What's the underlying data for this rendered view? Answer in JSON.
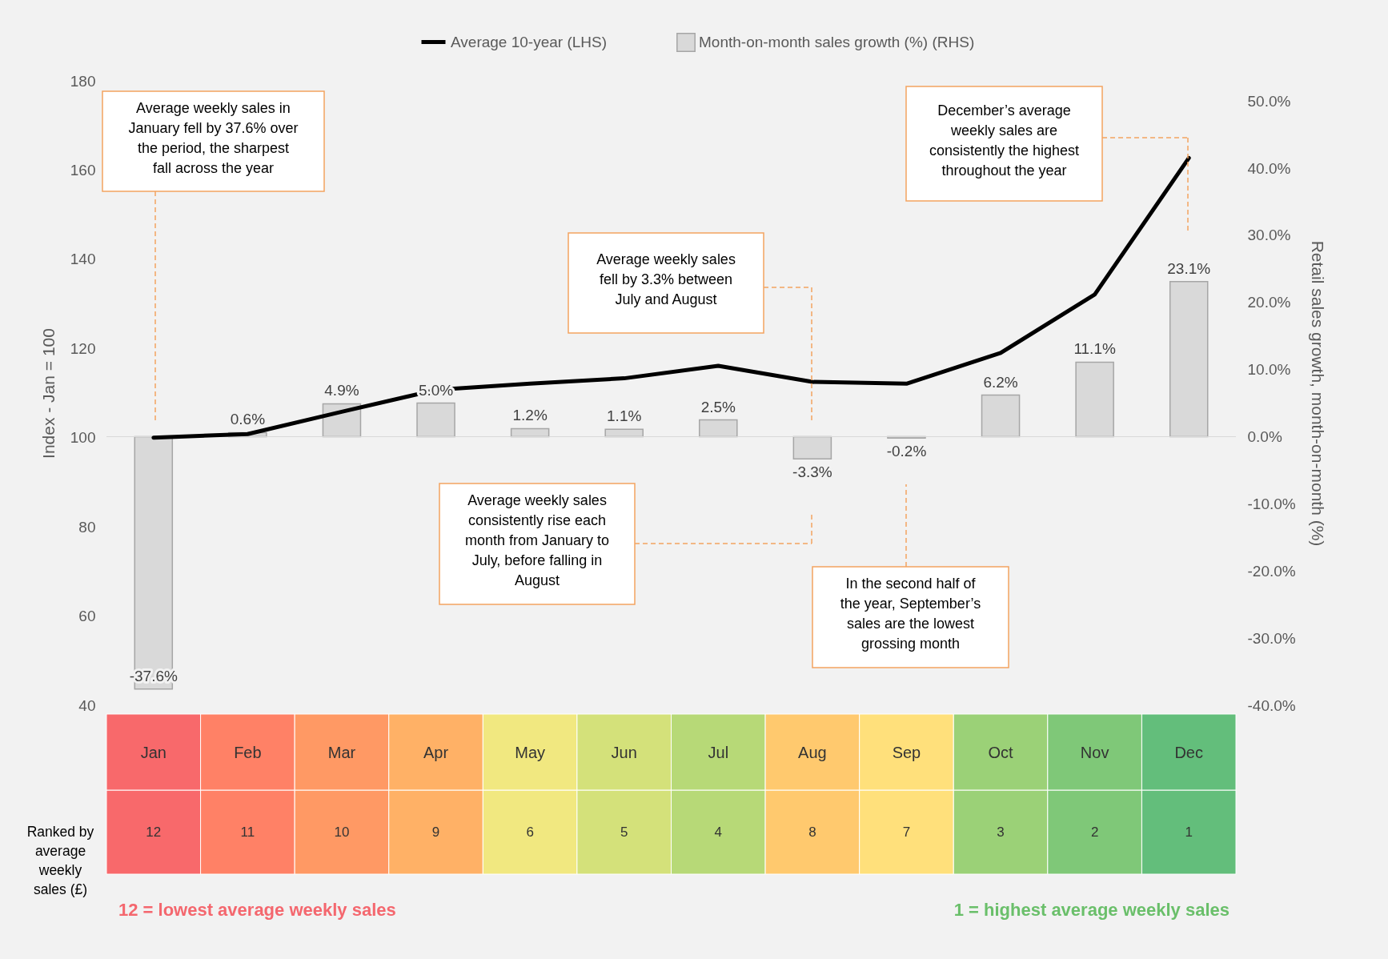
{
  "chart_data": [
    {
      "type": "bar",
      "categories": [
        null,
        null,
        null,
        null,
        null,
        null,
        null,
        null,
        null,
        null,
        null,
        null
      ],
      "series": [
        {
          "name": "Average 10-year (LHS)",
          "type": "line",
          "color": "#000000",
          "values": [
            100,
            100.8,
            105.8,
            110.7,
            112.1,
            113.3,
            116.1,
            112.5,
            112.1,
            119,
            132.1,
            162.7
          ]
        },
        {
          "name": "Month-on-month sales growth (%) (RHS)",
          "type": "bar",
          "axis": "y2",
          "color": "#d9d9d9",
          "values": [
            -37.6,
            0.6,
            4.9,
            5.0,
            1.2,
            1.1,
            2.5,
            -3.3,
            -0.2,
            6.2,
            11.1,
            23.1
          ],
          "value_labels": [
            "-37.6%",
            "0.6%",
            "4.9%",
            "5.0%",
            "1.2%",
            "1.1%",
            "2.5%",
            "-3.3%",
            "-0.2%",
            "6.2%",
            "11.1%",
            "23.1%"
          ]
        }
      ],
      "ylabel": "Index - Jan = 100",
      "y2label": "Retail sales growth, month-on-month (%)",
      "ylim": [
        40,
        180
      ],
      "yticks": [
        40,
        60,
        80,
        100,
        120,
        140,
        160,
        180
      ],
      "y2lim": [
        -40,
        53
      ],
      "y2ticks": [
        {
          "value": -40,
          "label": "-40.0%"
        },
        {
          "value": -30,
          "label": "-30.0%"
        },
        {
          "value": -20,
          "label": "-20.0%"
        },
        {
          "value": -10,
          "label": "-10.0%"
        },
        {
          "value": 0,
          "label": "0.0%"
        },
        {
          "value": 10,
          "label": "10.0%"
        },
        {
          "value": 20,
          "label": "20.0%"
        },
        {
          "value": 30,
          "label": "30.0%"
        },
        {
          "value": 40,
          "label": "40.0%"
        },
        {
          "value": 50,
          "label": "50.0%"
        }
      ],
      "legend": "top",
      "tick_labels": "y",
      "grid": false,
      "marker": "none",
      "line_style": "solid",
      "ref_lines": [
        {
          "axis": "y2",
          "value": 0,
          "color": "#d9d9d9"
        }
      ],
      "annotations": [
        "Average weekly sales in January fell by 37.6% over the period, the sharpest fall across the year",
        "December’s average weekly sales are consistently the highest throughout the year",
        "Average weekly sales fell by 3.3% between July and August",
        "Average weekly sales consistently rise each month from January to July, before falling in August",
        "In the second half of the year, September’s sales are the lowest grossing month"
      ]
    },
    {
      "type": "heatmap",
      "categories": [
        "Jan",
        "Feb",
        "Mar",
        "Apr",
        "May",
        "Jun",
        "Jul",
        "Aug",
        "Sep",
        "Oct",
        "Nov",
        "Dec"
      ],
      "y_categories": [
        "Ranked by average weekly sales (£)"
      ],
      "cells": [
        [
          12,
          11,
          10,
          9,
          6,
          5,
          4,
          8,
          7,
          3,
          2,
          1
        ]
      ],
      "data_labels": true,
      "annotations": [
        "12 = lowest average weekly sales",
        "1 = highest average weekly sales"
      ]
    }
  ]
}
